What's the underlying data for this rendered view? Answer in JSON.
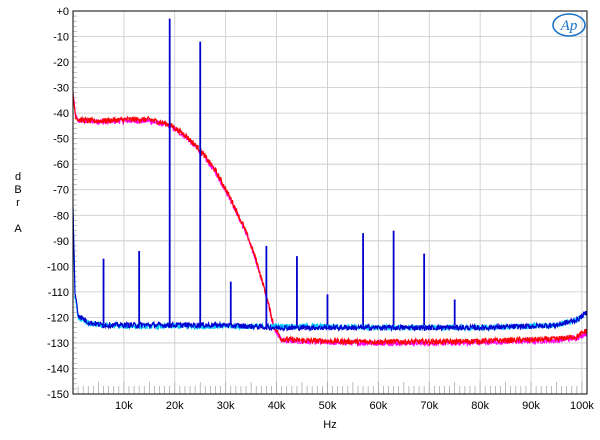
{
  "chart_data": {
    "type": "line",
    "title": "",
    "xlabel": "Hz",
    "ylabel": [
      "d",
      "B",
      "r",
      "",
      "A"
    ],
    "xlim": [
      0,
      101000
    ],
    "ylim": [
      -150,
      0
    ],
    "x_ticks": [
      {
        "value": 10000,
        "label": "10k"
      },
      {
        "value": 20000,
        "label": "20k"
      },
      {
        "value": 30000,
        "label": "30k"
      },
      {
        "value": 40000,
        "label": "40k"
      },
      {
        "value": 50000,
        "label": "50k"
      },
      {
        "value": 60000,
        "label": "60k"
      },
      {
        "value": 70000,
        "label": "70k"
      },
      {
        "value": 80000,
        "label": "80k"
      },
      {
        "value": 90000,
        "label": "90k"
      },
      {
        "value": 100000,
        "label": "100k"
      }
    ],
    "y_ticks": [
      {
        "value": 0,
        "label": "+0"
      },
      {
        "value": -10,
        "label": "-10"
      },
      {
        "value": -20,
        "label": "-20"
      },
      {
        "value": -30,
        "label": "-30"
      },
      {
        "value": -40,
        "label": "-40"
      },
      {
        "value": -50,
        "label": "-50"
      },
      {
        "value": -60,
        "label": "-60"
      },
      {
        "value": -70,
        "label": "-70"
      },
      {
        "value": -80,
        "label": "-80"
      },
      {
        "value": -90,
        "label": "-90"
      },
      {
        "value": -100,
        "label": "-100"
      },
      {
        "value": -110,
        "label": "-110"
      },
      {
        "value": -120,
        "label": "-120"
      },
      {
        "value": -130,
        "label": "-130"
      },
      {
        "value": -140,
        "label": "-140"
      },
      {
        "value": -150,
        "label": "-150"
      }
    ],
    "grid": true,
    "logo": "Ap",
    "series": [
      {
        "color": "#ff00ff",
        "x": [
          0,
          500,
          1000,
          3000,
          6000,
          10000,
          15000,
          19000,
          22000,
          25000,
          28000,
          31000,
          34000,
          36000,
          38000,
          39500,
          41000,
          45000,
          55000,
          65000,
          75000,
          85000,
          95000,
          99000,
          101000
        ],
        "y": [
          -32,
          -41,
          -43,
          -43,
          -43.5,
          -43,
          -43,
          -45,
          -49,
          -55,
          -63,
          -74,
          -87,
          -98,
          -112,
          -124,
          -129,
          -129.5,
          -130,
          -130,
          -130,
          -129.5,
          -129,
          -128,
          -126
        ]
      },
      {
        "color": "#ff0000",
        "x": [
          0,
          500,
          1000,
          3000,
          6000,
          10000,
          15000,
          19000,
          22000,
          25000,
          28000,
          31000,
          34000,
          36000,
          38000,
          39500,
          41000,
          45000,
          55000,
          65000,
          75000,
          85000,
          95000,
          99000,
          101000
        ],
        "y": [
          -33,
          -41,
          -42.5,
          -43,
          -43,
          -42.5,
          -42.5,
          -44.5,
          -48.5,
          -54.5,
          -62.5,
          -73.5,
          -86.5,
          -97.5,
          -111.5,
          -123.5,
          -128.5,
          -129,
          -129.5,
          -129.5,
          -129.5,
          -129,
          -128.5,
          -127.5,
          -125
        ]
      },
      {
        "color": "#00c8ff",
        "x": [
          0,
          400,
          1000,
          3000,
          6000,
          10000,
          15000,
          20000,
          30000,
          40000,
          50000,
          60000,
          70000,
          80000,
          90000,
          95000,
          99000,
          101000
        ],
        "y": [
          -78,
          -112,
          -120,
          -122.5,
          -123,
          -123.5,
          -123.5,
          -123.5,
          -123.5,
          -123.5,
          -123.5,
          -124,
          -124,
          -124,
          -123.5,
          -123,
          -121,
          -118
        ]
      },
      {
        "color": "#0000d0",
        "x": [
          0,
          400,
          1000,
          3000,
          6000,
          10000,
          15000,
          20000,
          30000,
          40000,
          50000,
          60000,
          70000,
          80000,
          90000,
          95000,
          99000,
          101000
        ],
        "y": [
          -77,
          -110,
          -119,
          -122,
          -123,
          -123,
          -123,
          -123,
          -123,
          -124,
          -124,
          -124,
          -124,
          -124,
          -123.5,
          -123,
          -121,
          -118
        ]
      }
    ],
    "spikes": {
      "color": "#0000cc",
      "x": [
        6000,
        13000,
        19000,
        25000,
        31000,
        38000,
        44000,
        50000,
        57000,
        63000,
        69000,
        75000
      ],
      "y": [
        -97,
        -94,
        -3,
        -12,
        -106,
        -92,
        -96,
        -111,
        -87,
        -86,
        -95,
        -113
      ]
    }
  }
}
